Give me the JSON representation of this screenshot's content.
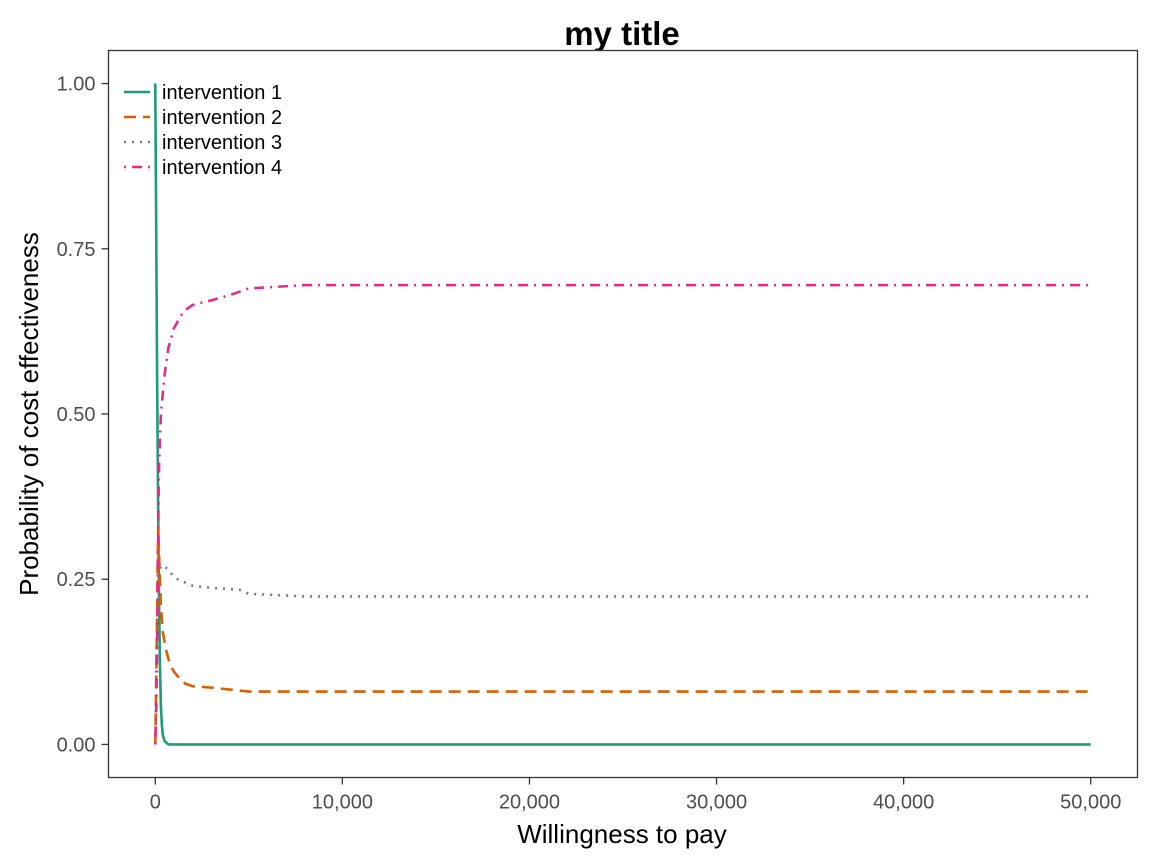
{
  "chart_data": {
    "type": "line",
    "title": "my title",
    "xlabel": "Willingness to pay",
    "ylabel": "Probability of cost effectiveness",
    "xlim": [
      -2500,
      52500
    ],
    "ylim": [
      -0.05,
      1.05
    ],
    "xticks": [
      0,
      10000,
      20000,
      30000,
      40000,
      50000
    ],
    "xtick_labels": [
      "0",
      "10,000",
      "20,000",
      "30,000",
      "40,000",
      "50,000"
    ],
    "yticks": [
      0,
      0.25,
      0.5,
      0.75,
      1
    ],
    "ytick_labels": [
      "0.00",
      "0.25",
      "0.50",
      "0.75",
      "1.00"
    ],
    "grid": false,
    "legend_position": "top-left",
    "series": [
      {
        "name": "intervention 1",
        "color": "#1b9e77",
        "dash": "solid",
        "x": [
          0,
          50,
          100,
          150,
          200,
          250,
          300,
          350,
          400,
          500,
          700,
          1000,
          50000
        ],
        "y": [
          1.0,
          0.78,
          0.55,
          0.37,
          0.22,
          0.12,
          0.06,
          0.03,
          0.015,
          0.005,
          0.0,
          0.0,
          0.0
        ]
      },
      {
        "name": "intervention 2",
        "color": "#d95f02",
        "dash": "dashed",
        "x": [
          0,
          30,
          60,
          100,
          130,
          160,
          200,
          250,
          300,
          400,
          600,
          800,
          1000,
          1300,
          1600,
          2000,
          3000,
          4000,
          5000,
          50000
        ],
        "y": [
          0.0,
          0.05,
          0.12,
          0.2,
          0.28,
          0.33,
          0.29,
          0.25,
          0.21,
          0.17,
          0.14,
          0.12,
          0.11,
          0.1,
          0.092,
          0.088,
          0.086,
          0.083,
          0.08,
          0.08
        ]
      },
      {
        "name": "intervention 3",
        "color": "#7570b3",
        "dash": "dotted",
        "x": [
          0,
          30,
          60,
          100,
          150,
          200,
          300,
          500,
          800,
          1200,
          2000,
          3000,
          4500,
          5000,
          8000,
          50000
        ],
        "y": [
          0.0,
          0.06,
          0.13,
          0.19,
          0.24,
          0.26,
          0.27,
          0.27,
          0.26,
          0.25,
          0.24,
          0.237,
          0.234,
          0.228,
          0.224,
          0.224
        ]
      },
      {
        "name": "intervention 4",
        "color": "#e7298a",
        "dash": "dashdot",
        "x": [
          0,
          50,
          100,
          150,
          200,
          300,
          500,
          700,
          1000,
          1500,
          2000,
          3000,
          4000,
          5000,
          8000,
          50000
        ],
        "y": [
          0.0,
          0.05,
          0.15,
          0.3,
          0.42,
          0.5,
          0.56,
          0.6,
          0.63,
          0.655,
          0.665,
          0.672,
          0.68,
          0.69,
          0.695,
          0.695
        ]
      }
    ]
  }
}
